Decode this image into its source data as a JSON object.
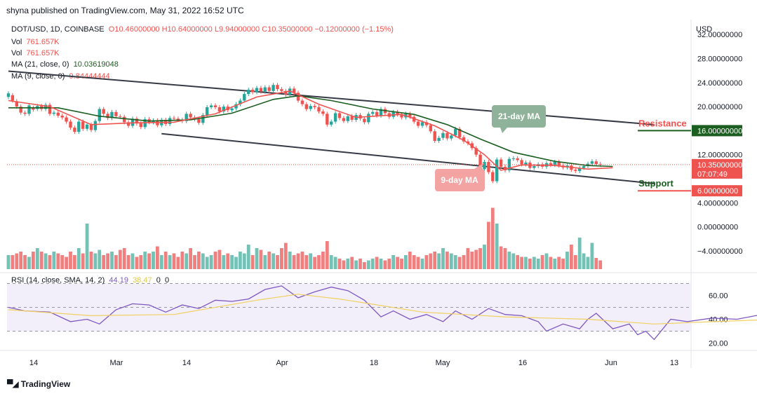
{
  "header": {
    "publisher": "shyna published on TradingView.com, May 31, 2022 16:52 UTC"
  },
  "legend": {
    "symbol": "DOT/USD, 1D, COINBASE",
    "ohlc": "O10.46000000  H10.64000000  L9.94000000  C10.35000000  −0.12000000 (−1.15%)",
    "vol1_label": "Vol",
    "vol1_value": "761.657K",
    "vol2_label": "Vol",
    "vol2_value": "761.657K",
    "ma21_label": "MA (21, close, 0)",
    "ma21_value": "10.03619048",
    "ma9_label": "MA (9, close, 0)",
    "ma9_value": "9.84444444",
    "rsi_label": "RSI (14, close, SMA, 14, 2)",
    "rsi_value": "44.19",
    "rsi_sma_value": "38.47",
    "rsi_extra1": "0",
    "rsi_extra2": "0"
  },
  "annotations": {
    "ma21_callout": "21-day MA",
    "ma9_callout": "9-day MA",
    "resistance": "Resistance",
    "support": "Support"
  },
  "footer": {
    "brand": "TradingView"
  },
  "colors": {
    "up": "#26a69a",
    "down": "#ef5350",
    "ma9": "#ef5350",
    "ma21": "#1b5e20",
    "vol_up": "#73c2b5",
    "vol_down": "#f08080",
    "rsi": "#7e57c2",
    "rsi_sma": "#f0d060",
    "resistance": "#1b5e20",
    "support": "#ef5350",
    "price_tag": "#ef5350"
  },
  "chart_data": {
    "type": "candlestick",
    "symbol": "DOT/USD",
    "timeframe": "1D",
    "y_axis_title": "USD",
    "price_axis_ticks": [
      "32.00000000",
      "28.00000000",
      "24.00000000",
      "20.00000000",
      "16.00000000",
      "12.00000000",
      "10.35000000",
      "6.00000000",
      "4.00000000",
      "0.00000000",
      "−4.00000000"
    ],
    "rsi_axis_ticks": [
      "60.00",
      "40.00",
      "20.00"
    ],
    "x_ticks": [
      "14",
      "Mar",
      "14",
      "Apr",
      "18",
      "May",
      "16",
      "Jun",
      "13"
    ],
    "price_range": [
      -7.5,
      34
    ],
    "rsi_range": [
      15,
      75
    ],
    "last_price_tag": {
      "price": "10.35000000",
      "countdown": "07:07:49"
    },
    "levels": {
      "resistance": {
        "label": "Resistance",
        "value": "16.00000000"
      },
      "support": {
        "label": "Support",
        "value": "6.00000000"
      }
    },
    "channel": {
      "upper": [
        [
          0,
          25.9
        ],
        [
          156,
          17.0
        ]
      ],
      "lower": [
        [
          37,
          15.5
        ],
        [
          156,
          7.2
        ]
      ]
    },
    "candles": [
      [
        21.6,
        22.2
      ],
      [
        21.9,
        21.0
      ],
      [
        20.9,
        20.0
      ],
      [
        20.0,
        19.0
      ],
      [
        19.0,
        18.8
      ],
      [
        18.8,
        20.2
      ],
      [
        19.8,
        19.5
      ],
      [
        19.6,
        20.1
      ],
      [
        20.1,
        19.6
      ],
      [
        19.6,
        20.3
      ],
      [
        20.3,
        18.8
      ],
      [
        18.8,
        19.0
      ],
      [
        19.0,
        18.5
      ],
      [
        18.5,
        18.2
      ],
      [
        18.2,
        17.5
      ],
      [
        17.5,
        16.5
      ],
      [
        16.5,
        15.8
      ],
      [
        15.8,
        17.5
      ],
      [
        17.5,
        16.3
      ],
      [
        16.3,
        17.0
      ],
      [
        17.0,
        16.1
      ],
      [
        16.1,
        17.6
      ],
      [
        17.6,
        19.6
      ],
      [
        19.6,
        18.8
      ],
      [
        18.8,
        18.1
      ],
      [
        18.1,
        19.1
      ],
      [
        19.1,
        18.4
      ],
      [
        18.4,
        18.3
      ],
      [
        18.3,
        17.4
      ],
      [
        17.4,
        16.8
      ],
      [
        16.8,
        18.0
      ],
      [
        18.0,
        17.2
      ],
      [
        17.2,
        16.6
      ],
      [
        16.6,
        17.9
      ],
      [
        17.9,
        17.4
      ],
      [
        17.4,
        17.7
      ],
      [
        17.7,
        16.9
      ],
      [
        16.9,
        17.8
      ],
      [
        17.8,
        17.1
      ],
      [
        17.1,
        18.1
      ],
      [
        18.1,
        18.0
      ],
      [
        18.0,
        17.8
      ],
      [
        17.8,
        17.6
      ],
      [
        17.6,
        18.8
      ],
      [
        18.8,
        18.2
      ],
      [
        18.2,
        17.9
      ],
      [
        17.9,
        17.3
      ],
      [
        17.3,
        18.6
      ],
      [
        18.6,
        19.9
      ],
      [
        19.9,
        20.2
      ],
      [
        20.2,
        19.9
      ],
      [
        19.9,
        19.2
      ],
      [
        19.2,
        20.0
      ],
      [
        20.0,
        19.4
      ],
      [
        19.4,
        19.7
      ],
      [
        19.7,
        20.4
      ],
      [
        20.4,
        21.0
      ],
      [
        21.0,
        22.1
      ],
      [
        22.1,
        22.8
      ],
      [
        22.8,
        22.4
      ],
      [
        22.4,
        23.1
      ],
      [
        23.1,
        22.5
      ],
      [
        22.5,
        23.2
      ],
      [
        23.2,
        22.6
      ],
      [
        22.6,
        23.6
      ],
      [
        23.6,
        22.9
      ],
      [
        22.9,
        22.6
      ],
      [
        22.6,
        22.0
      ],
      [
        22.0,
        23.0
      ],
      [
        23.0,
        22.3
      ],
      [
        22.3,
        21.0
      ],
      [
        21.0,
        20.4
      ],
      [
        20.4,
        19.6
      ],
      [
        19.6,
        20.1
      ],
      [
        20.1,
        19.9
      ],
      [
        19.9,
        19.2
      ],
      [
        19.2,
        18.8
      ],
      [
        18.8,
        17.0
      ],
      [
        17.0,
        17.5
      ],
      [
        17.5,
        18.9
      ],
      [
        18.9,
        18.1
      ],
      [
        18.1,
        17.6
      ],
      [
        17.6,
        18.4
      ],
      [
        18.4,
        17.8
      ],
      [
        17.8,
        18.6
      ],
      [
        18.6,
        18.0
      ],
      [
        18.0,
        17.4
      ],
      [
        17.4,
        18.8
      ],
      [
        18.8,
        19.1
      ],
      [
        19.1,
        18.5
      ],
      [
        18.5,
        19.6
      ],
      [
        19.6,
        18.9
      ],
      [
        18.9,
        18.3
      ],
      [
        18.3,
        19.1
      ],
      [
        19.1,
        18.7
      ],
      [
        18.7,
        18.2
      ],
      [
        18.2,
        18.8
      ],
      [
        18.8,
        18.3
      ],
      [
        18.3,
        17.5
      ],
      [
        17.5,
        16.8
      ],
      [
        16.8,
        17.4
      ],
      [
        17.4,
        16.9
      ],
      [
        16.9,
        15.9
      ],
      [
        15.9,
        14.3
      ],
      [
        14.3,
        14.8
      ],
      [
        14.8,
        15.6
      ],
      [
        15.6,
        14.7
      ],
      [
        14.7,
        15.2
      ],
      [
        15.2,
        16.3
      ],
      [
        16.3,
        14.9
      ],
      [
        14.9,
        14.2
      ],
      [
        14.2,
        13.9
      ],
      [
        13.9,
        13.1
      ],
      [
        13.1,
        12.0
      ],
      [
        12.0,
        9.6
      ],
      [
        9.6,
        10.8
      ],
      [
        10.8,
        9.1
      ],
      [
        9.1,
        7.6
      ],
      [
        7.6,
        11.2
      ],
      [
        11.2,
        10.0
      ],
      [
        10.0,
        9.4
      ],
      [
        9.4,
        11.3
      ],
      [
        11.3,
        11.4
      ],
      [
        11.4,
        11.1
      ],
      [
        11.1,
        10.4
      ],
      [
        10.4,
        10.7
      ],
      [
        10.7,
        9.8
      ],
      [
        9.8,
        10.1
      ],
      [
        10.1,
        10.4
      ],
      [
        10.4,
        10.0
      ],
      [
        10.0,
        10.6
      ],
      [
        10.6,
        10.3
      ],
      [
        10.3,
        10.8
      ],
      [
        10.8,
        10.2
      ],
      [
        10.2,
        9.9
      ],
      [
        9.9,
        10.2
      ],
      [
        10.2,
        9.5
      ],
      [
        9.5,
        9.3
      ],
      [
        9.3,
        9.8
      ],
      [
        9.8,
        10.1
      ],
      [
        10.1,
        10.5
      ],
      [
        10.5,
        10.9
      ],
      [
        10.9,
        10.46
      ],
      [
        10.46,
        10.35
      ]
    ],
    "ma9": [
      [
        0,
        21.0
      ],
      [
        10,
        20.0
      ],
      [
        20,
        17.0
      ],
      [
        30,
        17.3
      ],
      [
        40,
        17.4
      ],
      [
        50,
        18.8
      ],
      [
        60,
        21.6
      ],
      [
        68,
        22.6
      ],
      [
        75,
        20.4
      ],
      [
        84,
        18.2
      ],
      [
        95,
        18.7
      ],
      [
        103,
        16.8
      ],
      [
        110,
        14.4
      ],
      [
        115,
        12.0
      ],
      [
        119,
        9.4
      ],
      [
        124,
        10.3
      ],
      [
        132,
        10.2
      ],
      [
        140,
        9.6
      ],
      [
        146,
        9.84
      ]
    ],
    "ma21": [
      [
        0,
        19.8
      ],
      [
        12,
        19.8
      ],
      [
        22,
        18.4
      ],
      [
        34,
        17.6
      ],
      [
        44,
        17.8
      ],
      [
        54,
        18.9
      ],
      [
        64,
        21.2
      ],
      [
        70,
        21.8
      ],
      [
        78,
        21.0
      ],
      [
        88,
        19.6
      ],
      [
        98,
        18.7
      ],
      [
        106,
        17.0
      ],
      [
        114,
        14.6
      ],
      [
        122,
        12.4
      ],
      [
        132,
        10.9
      ],
      [
        140,
        10.2
      ],
      [
        146,
        10.04
      ]
    ],
    "volume": [
      4,
      4,
      4.5,
      5,
      4,
      3.5,
      5,
      6,
      5,
      4.5,
      4,
      5,
      4.5,
      4,
      3.5,
      5,
      4,
      6,
      4.5,
      13,
      5,
      4.5,
      5.5,
      4,
      4.5,
      5,
      4,
      5.5,
      6,
      4,
      4.5,
      3.5,
      4,
      5,
      4.5,
      5,
      6.5,
      4,
      5,
      4,
      4.5,
      3.5,
      5,
      4.5,
      6,
      4,
      5,
      4.5,
      3.5,
      4,
      5,
      5.5,
      4,
      4.5,
      4,
      3.5,
      5,
      4.5,
      7,
      4,
      6,
      5.5,
      4,
      5,
      4.5,
      4,
      6,
      7.5,
      5,
      4,
      4.5,
      5,
      4,
      4.5,
      3.5,
      4,
      5,
      8,
      4,
      3.5,
      3,
      2.5,
      3,
      3.5,
      2.5,
      3,
      2,
      2.5,
      3,
      3.5,
      3,
      2.5,
      3,
      4,
      3.5,
      3,
      4,
      5,
      4,
      3.5,
      3,
      4,
      4.5,
      5,
      4.5,
      6,
      5,
      4.5,
      4,
      3.5,
      4,
      6,
      5,
      5.5,
      6,
      7,
      13.5,
      17.5,
      13,
      6.5,
      6,
      5,
      4.5,
      4,
      3.5,
      3.5,
      3,
      3.5,
      3,
      4,
      4.5,
      3.5,
      3,
      3.5,
      3,
      5,
      7,
      4,
      9,
      4.5,
      3.5,
      7.5,
      3.2,
      2.5
    ],
    "rsi": [
      [
        0,
        50
      ],
      [
        4,
        47
      ],
      [
        10,
        46
      ],
      [
        15,
        38
      ],
      [
        19,
        40
      ],
      [
        22,
        36
      ],
      [
        26,
        48
      ],
      [
        30,
        53
      ],
      [
        34,
        52
      ],
      [
        38,
        46
      ],
      [
        42,
        52
      ],
      [
        46,
        49
      ],
      [
        50,
        56
      ],
      [
        54,
        55
      ],
      [
        58,
        57
      ],
      [
        62,
        65
      ],
      [
        66,
        68
      ],
      [
        70,
        58
      ],
      [
        74,
        63
      ],
      [
        78,
        67
      ],
      [
        82,
        64
      ],
      [
        86,
        56
      ],
      [
        90,
        42
      ],
      [
        93,
        47
      ],
      [
        97,
        40
      ],
      [
        101,
        44
      ],
      [
        105,
        38
      ],
      [
        108,
        47
      ],
      [
        112,
        40
      ],
      [
        116,
        49
      ],
      [
        120,
        44
      ],
      [
        124,
        43
      ],
      [
        128,
        38
      ],
      [
        130,
        30
      ],
      [
        134,
        36
      ],
      [
        138,
        32
      ],
      [
        140,
        40
      ],
      [
        142,
        45
      ],
      [
        146,
        32
      ],
      [
        150,
        36
      ],
      [
        152,
        27
      ],
      [
        154,
        30
      ],
      [
        156,
        23
      ],
      [
        160,
        40
      ],
      [
        164,
        38
      ],
      [
        170,
        41
      ],
      [
        176,
        40
      ],
      [
        182,
        44
      ],
      [
        186,
        38
      ],
      [
        190,
        43
      ],
      [
        194,
        46
      ],
      [
        196,
        44
      ]
    ],
    "rsi_sma": [
      [
        0,
        48
      ],
      [
        20,
        43
      ],
      [
        40,
        44
      ],
      [
        60,
        56
      ],
      [
        70,
        61
      ],
      [
        80,
        57
      ],
      [
        100,
        46
      ],
      [
        120,
        42
      ],
      [
        140,
        40
      ],
      [
        156,
        36
      ],
      [
        170,
        38
      ],
      [
        186,
        40
      ],
      [
        196,
        40
      ]
    ]
  }
}
